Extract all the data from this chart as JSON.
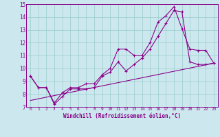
{
  "bg_color": "#cce8ee",
  "line_color": "#880088",
  "grid_color": "#99cccc",
  "xlim": [
    -0.5,
    23.5
  ],
  "ylim": [
    7,
    15
  ],
  "xticks": [
    0,
    1,
    2,
    3,
    4,
    5,
    6,
    7,
    8,
    9,
    10,
    11,
    12,
    13,
    14,
    15,
    16,
    17,
    18,
    19,
    20,
    21,
    22,
    23
  ],
  "yticks": [
    7,
    8,
    9,
    10,
    11,
    12,
    13,
    14,
    15
  ],
  "xlabel": "Windchill (Refroidissement éolien,°C)",
  "line1_x": [
    0,
    1,
    2,
    3,
    4,
    5,
    6,
    7,
    8,
    9,
    10,
    11,
    12,
    13,
    14,
    15,
    16,
    17,
    18,
    19,
    20,
    21,
    22,
    23
  ],
  "line1_y": [
    9.4,
    8.5,
    8.5,
    7.3,
    8.1,
    8.5,
    8.5,
    8.8,
    8.8,
    9.5,
    10.0,
    11.5,
    11.5,
    11.0,
    11.0,
    12.0,
    13.6,
    14.1,
    14.8,
    13.1,
    11.5,
    11.4,
    11.4,
    10.4
  ],
  "line2_x": [
    0,
    1,
    2,
    3,
    4,
    5,
    6,
    7,
    8,
    9,
    10,
    11,
    12,
    13,
    14,
    15,
    16,
    17,
    18,
    19,
    20,
    21,
    22,
    23
  ],
  "line2_y": [
    9.4,
    8.5,
    8.5,
    7.2,
    7.8,
    8.4,
    8.4,
    8.4,
    8.5,
    9.4,
    9.7,
    10.5,
    9.8,
    10.3,
    10.8,
    11.5,
    12.5,
    13.5,
    14.5,
    14.4,
    10.5,
    10.3,
    10.3,
    10.4
  ],
  "line3_x": [
    0,
    23
  ],
  "line3_y": [
    7.5,
    10.4
  ]
}
